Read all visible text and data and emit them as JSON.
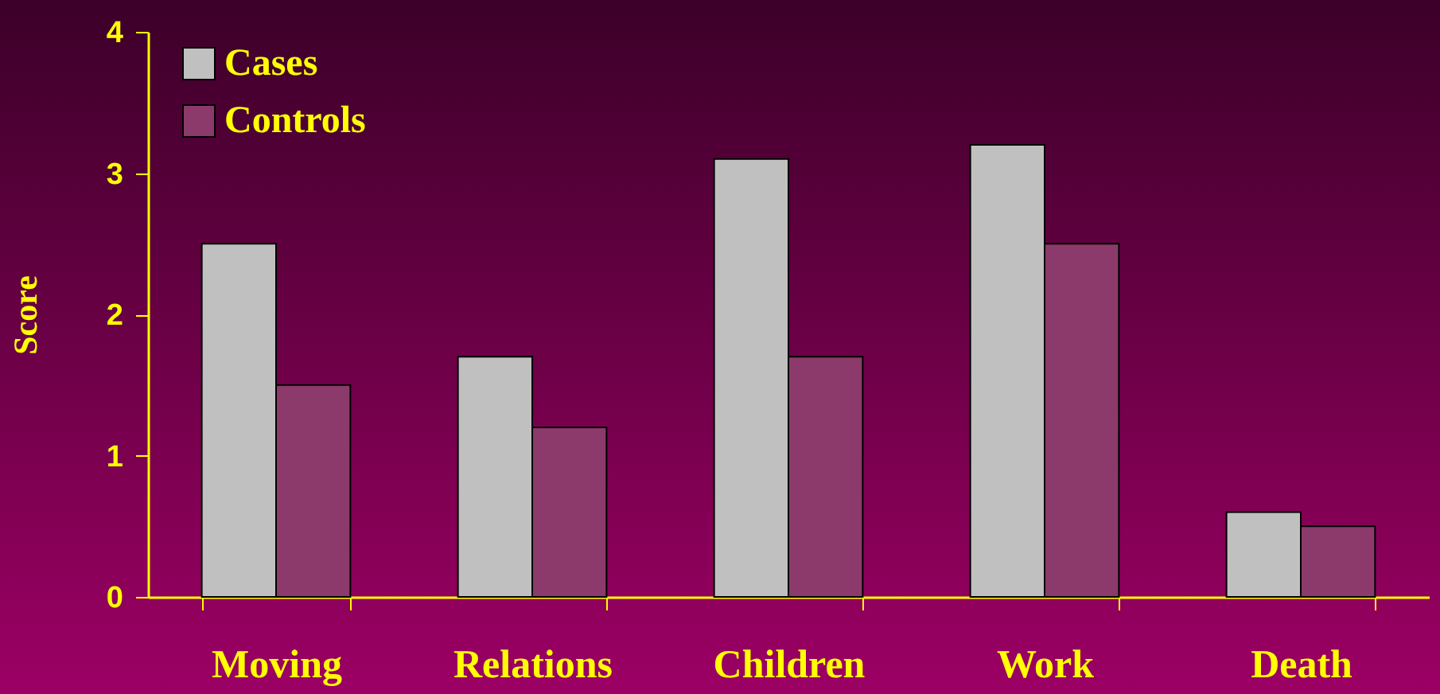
{
  "chart_data": {
    "type": "bar",
    "ylabel": "Score",
    "categories": [
      "Moving",
      "Relations",
      "Children",
      "Work",
      "Death"
    ],
    "series": [
      {
        "name": "Cases",
        "color": "#c0c0c0",
        "values": [
          2.5,
          1.7,
          3.1,
          3.2,
          0.6
        ]
      },
      {
        "name": "Controls",
        "color": "#8b3a6b",
        "values": [
          1.5,
          1.2,
          1.7,
          2.5,
          0.5
        ]
      }
    ],
    "ylim": [
      0,
      4
    ],
    "yticks": [
      0,
      1,
      2,
      3,
      4
    ],
    "grid": false,
    "legend": "top left"
  }
}
